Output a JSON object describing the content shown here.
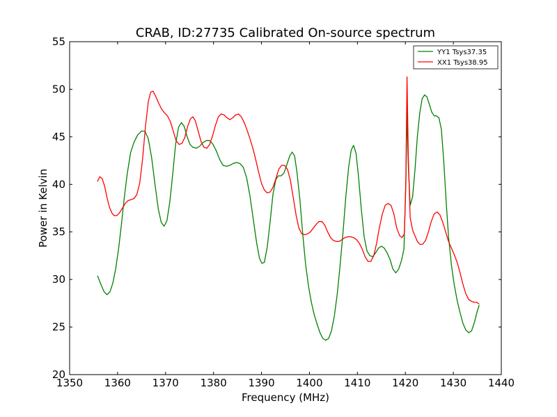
{
  "chart_data": {
    "type": "line",
    "title": "CRAB, ID:27735 Calibrated On-source spectrum",
    "xlabel": "Frequency (MHz)",
    "ylabel": "Power in Kelvin",
    "xlim": [
      1350,
      1440
    ],
    "ylim": [
      20,
      55
    ],
    "xticks": [
      1350,
      1360,
      1370,
      1380,
      1390,
      1400,
      1410,
      1420,
      1430,
      1440
    ],
    "yticks": [
      20,
      25,
      30,
      35,
      40,
      45,
      50,
      55
    ],
    "x_tick_labels": [
      "1350",
      "1360",
      "1370",
      "1380",
      "1390",
      "1400",
      "1410",
      "1420",
      "1430",
      "1440"
    ],
    "y_tick_labels": [
      "20",
      "25",
      "30",
      "35",
      "40",
      "45",
      "50",
      "55"
    ],
    "grid": false,
    "legend_position": "top-right",
    "series": [
      {
        "name": "YY1 Tsys37.35",
        "color": "#008000",
        "points": [
          [
            1355.8,
            30.4
          ],
          [
            1356.5,
            29.5
          ],
          [
            1357.2,
            28.7
          ],
          [
            1357.8,
            28.4
          ],
          [
            1358.4,
            28.7
          ],
          [
            1359.0,
            29.6
          ],
          [
            1359.6,
            31.1
          ],
          [
            1360.2,
            33.2
          ],
          [
            1360.8,
            35.8
          ],
          [
            1361.4,
            38.6
          ],
          [
            1362.0,
            41.1
          ],
          [
            1362.7,
            43.3
          ],
          [
            1363.4,
            44.4
          ],
          [
            1364.2,
            45.2
          ],
          [
            1365.0,
            45.6
          ],
          [
            1365.7,
            45.6
          ],
          [
            1366.4,
            44.8
          ],
          [
            1367.1,
            42.8
          ],
          [
            1367.8,
            40.0
          ],
          [
            1368.5,
            37.4
          ],
          [
            1369.1,
            36.0
          ],
          [
            1369.7,
            35.6
          ],
          [
            1370.3,
            36.2
          ],
          [
            1370.9,
            38.2
          ],
          [
            1371.5,
            41.1
          ],
          [
            1372.1,
            44.2
          ],
          [
            1372.7,
            46.0
          ],
          [
            1373.3,
            46.5
          ],
          [
            1373.9,
            46.1
          ],
          [
            1374.5,
            45.0
          ],
          [
            1375.1,
            44.2
          ],
          [
            1375.7,
            43.9
          ],
          [
            1376.4,
            43.8
          ],
          [
            1377.1,
            44.0
          ],
          [
            1377.8,
            44.4
          ],
          [
            1378.5,
            44.6
          ],
          [
            1379.2,
            44.6
          ],
          [
            1379.9,
            44.2
          ],
          [
            1380.6,
            43.5
          ],
          [
            1381.3,
            42.6
          ],
          [
            1382.0,
            42.0
          ],
          [
            1382.7,
            41.9
          ],
          [
            1383.4,
            42.0
          ],
          [
            1384.1,
            42.2
          ],
          [
            1384.8,
            42.3
          ],
          [
            1385.5,
            42.2
          ],
          [
            1386.2,
            41.8
          ],
          [
            1386.9,
            40.7
          ],
          [
            1387.6,
            38.8
          ],
          [
            1388.3,
            36.3
          ],
          [
            1389.0,
            33.8
          ],
          [
            1389.6,
            32.2
          ],
          [
            1390.1,
            31.7
          ],
          [
            1390.6,
            31.8
          ],
          [
            1391.2,
            33.4
          ],
          [
            1391.8,
            36.1
          ],
          [
            1392.4,
            39.0
          ],
          [
            1393.0,
            40.5
          ],
          [
            1393.5,
            40.9
          ],
          [
            1394.1,
            40.9
          ],
          [
            1394.7,
            41.2
          ],
          [
            1395.3,
            42.1
          ],
          [
            1395.9,
            43.0
          ],
          [
            1396.4,
            43.4
          ],
          [
            1396.9,
            43.0
          ],
          [
            1397.4,
            41.3
          ],
          [
            1398.0,
            38.4
          ],
          [
            1398.6,
            34.8
          ],
          [
            1399.2,
            31.6
          ],
          [
            1399.8,
            29.3
          ],
          [
            1400.4,
            27.6
          ],
          [
            1401.0,
            26.3
          ],
          [
            1401.6,
            25.3
          ],
          [
            1402.2,
            24.4
          ],
          [
            1402.8,
            23.8
          ],
          [
            1403.4,
            23.6
          ],
          [
            1404.0,
            23.8
          ],
          [
            1404.6,
            24.6
          ],
          [
            1405.2,
            26.2
          ],
          [
            1405.8,
            28.5
          ],
          [
            1406.4,
            31.5
          ],
          [
            1407.0,
            35.0
          ],
          [
            1407.6,
            38.8
          ],
          [
            1408.2,
            41.9
          ],
          [
            1408.7,
            43.6
          ],
          [
            1409.2,
            44.1
          ],
          [
            1409.7,
            43.3
          ],
          [
            1410.2,
            41.0
          ],
          [
            1410.8,
            37.5
          ],
          [
            1411.4,
            34.5
          ],
          [
            1412.0,
            33.0
          ],
          [
            1412.6,
            32.5
          ],
          [
            1413.2,
            32.4
          ],
          [
            1413.8,
            32.8
          ],
          [
            1414.4,
            33.3
          ],
          [
            1415.0,
            33.5
          ],
          [
            1415.6,
            33.3
          ],
          [
            1416.2,
            32.8
          ],
          [
            1416.8,
            32.1
          ],
          [
            1417.4,
            31.1
          ],
          [
            1418.0,
            30.7
          ],
          [
            1418.6,
            31.1
          ],
          [
            1419.2,
            32.0
          ],
          [
            1419.7,
            33.2
          ],
          [
            1420.1,
            40.0
          ],
          [
            1420.35,
            47.5
          ],
          [
            1420.6,
            42.0
          ],
          [
            1421.0,
            37.8
          ],
          [
            1421.5,
            38.7
          ],
          [
            1422.0,
            41.5
          ],
          [
            1422.5,
            45.0
          ],
          [
            1423.0,
            47.5
          ],
          [
            1423.5,
            49.0
          ],
          [
            1424.0,
            49.4
          ],
          [
            1424.5,
            49.2
          ],
          [
            1425.0,
            48.4
          ],
          [
            1425.5,
            47.6
          ],
          [
            1426.0,
            47.2
          ],
          [
            1426.5,
            47.2
          ],
          [
            1427.0,
            47.0
          ],
          [
            1427.5,
            45.8
          ],
          [
            1428.0,
            42.5
          ],
          [
            1428.5,
            38.2
          ],
          [
            1429.0,
            34.5
          ],
          [
            1429.6,
            31.5
          ],
          [
            1430.2,
            29.4
          ],
          [
            1430.8,
            27.8
          ],
          [
            1431.4,
            26.5
          ],
          [
            1432.0,
            25.4
          ],
          [
            1432.6,
            24.7
          ],
          [
            1433.2,
            24.4
          ],
          [
            1433.8,
            24.6
          ],
          [
            1434.4,
            25.5
          ],
          [
            1435.0,
            26.7
          ],
          [
            1435.4,
            27.3
          ]
        ]
      },
      {
        "name": "XX1 Tsys38.95",
        "color": "#ff0000",
        "points": [
          [
            1355.8,
            40.3
          ],
          [
            1356.3,
            40.8
          ],
          [
            1356.8,
            40.6
          ],
          [
            1357.3,
            39.8
          ],
          [
            1357.8,
            38.6
          ],
          [
            1358.3,
            37.6
          ],
          [
            1358.8,
            37.0
          ],
          [
            1359.3,
            36.7
          ],
          [
            1359.8,
            36.7
          ],
          [
            1360.4,
            37.0
          ],
          [
            1361.0,
            37.5
          ],
          [
            1361.6,
            38.0
          ],
          [
            1362.2,
            38.3
          ],
          [
            1362.8,
            38.4
          ],
          [
            1363.4,
            38.5
          ],
          [
            1364.0,
            38.9
          ],
          [
            1364.6,
            40.1
          ],
          [
            1365.2,
            42.6
          ],
          [
            1365.8,
            46.0
          ],
          [
            1366.4,
            48.7
          ],
          [
            1366.9,
            49.7
          ],
          [
            1367.4,
            49.8
          ],
          [
            1368.0,
            49.2
          ],
          [
            1368.6,
            48.5
          ],
          [
            1369.2,
            47.9
          ],
          [
            1369.8,
            47.5
          ],
          [
            1370.4,
            47.2
          ],
          [
            1371.0,
            46.6
          ],
          [
            1371.6,
            45.6
          ],
          [
            1372.2,
            44.6
          ],
          [
            1372.8,
            44.2
          ],
          [
            1373.4,
            44.3
          ],
          [
            1374.0,
            44.9
          ],
          [
            1374.6,
            46.1
          ],
          [
            1375.2,
            46.9
          ],
          [
            1375.7,
            47.1
          ],
          [
            1376.2,
            46.7
          ],
          [
            1376.8,
            45.6
          ],
          [
            1377.4,
            44.5
          ],
          [
            1378.0,
            43.9
          ],
          [
            1378.6,
            43.8
          ],
          [
            1379.2,
            44.2
          ],
          [
            1379.8,
            45.1
          ],
          [
            1380.4,
            46.2
          ],
          [
            1381.0,
            47.1
          ],
          [
            1381.6,
            47.4
          ],
          [
            1382.2,
            47.3
          ],
          [
            1382.8,
            47.0
          ],
          [
            1383.4,
            46.8
          ],
          [
            1384.0,
            47.0
          ],
          [
            1384.6,
            47.3
          ],
          [
            1385.2,
            47.4
          ],
          [
            1385.8,
            47.1
          ],
          [
            1386.4,
            46.5
          ],
          [
            1387.0,
            45.7
          ],
          [
            1387.6,
            44.8
          ],
          [
            1388.2,
            43.8
          ],
          [
            1388.8,
            42.6
          ],
          [
            1389.4,
            41.3
          ],
          [
            1390.0,
            40.1
          ],
          [
            1390.6,
            39.4
          ],
          [
            1391.2,
            39.1
          ],
          [
            1391.8,
            39.2
          ],
          [
            1392.4,
            39.7
          ],
          [
            1393.0,
            40.6
          ],
          [
            1393.6,
            41.6
          ],
          [
            1394.2,
            42.0
          ],
          [
            1394.8,
            42.0
          ],
          [
            1395.4,
            41.6
          ],
          [
            1396.0,
            40.5
          ],
          [
            1396.6,
            38.7
          ],
          [
            1397.2,
            36.8
          ],
          [
            1397.8,
            35.4
          ],
          [
            1398.4,
            34.8
          ],
          [
            1399.0,
            34.7
          ],
          [
            1399.6,
            34.8
          ],
          [
            1400.2,
            35.0
          ],
          [
            1400.8,
            35.4
          ],
          [
            1401.4,
            35.8
          ],
          [
            1402.0,
            36.1
          ],
          [
            1402.6,
            36.1
          ],
          [
            1403.2,
            35.7
          ],
          [
            1403.8,
            35.0
          ],
          [
            1404.4,
            34.4
          ],
          [
            1405.0,
            34.1
          ],
          [
            1405.6,
            34.0
          ],
          [
            1406.2,
            34.0
          ],
          [
            1406.8,
            34.2
          ],
          [
            1407.4,
            34.4
          ],
          [
            1408.0,
            34.5
          ],
          [
            1408.6,
            34.5
          ],
          [
            1409.2,
            34.4
          ],
          [
            1409.8,
            34.2
          ],
          [
            1410.4,
            33.8
          ],
          [
            1411.0,
            33.2
          ],
          [
            1411.6,
            32.4
          ],
          [
            1412.2,
            31.9
          ],
          [
            1412.8,
            31.9
          ],
          [
            1413.4,
            32.5
          ],
          [
            1414.0,
            33.8
          ],
          [
            1414.6,
            35.5
          ],
          [
            1415.2,
            36.9
          ],
          [
            1415.8,
            37.8
          ],
          [
            1416.4,
            38.0
          ],
          [
            1417.0,
            37.8
          ],
          [
            1417.6,
            36.9
          ],
          [
            1418.2,
            35.4
          ],
          [
            1418.8,
            34.6
          ],
          [
            1419.3,
            34.4
          ],
          [
            1419.8,
            34.8
          ],
          [
            1420.1,
            40.5
          ],
          [
            1420.35,
            51.3
          ],
          [
            1420.6,
            43.0
          ],
          [
            1421.0,
            36.5
          ],
          [
            1421.5,
            35.2
          ],
          [
            1422.0,
            34.6
          ],
          [
            1422.5,
            34.0
          ],
          [
            1423.0,
            33.7
          ],
          [
            1423.6,
            33.7
          ],
          [
            1424.2,
            34.1
          ],
          [
            1424.8,
            35.0
          ],
          [
            1425.4,
            36.1
          ],
          [
            1426.0,
            36.9
          ],
          [
            1426.6,
            37.1
          ],
          [
            1427.2,
            36.8
          ],
          [
            1427.8,
            36.0
          ],
          [
            1428.4,
            35.0
          ],
          [
            1429.0,
            34.0
          ],
          [
            1429.6,
            33.3
          ],
          [
            1430.2,
            32.6
          ],
          [
            1430.8,
            31.8
          ],
          [
            1431.4,
            30.7
          ],
          [
            1432.0,
            29.5
          ],
          [
            1432.6,
            28.5
          ],
          [
            1433.2,
            27.9
          ],
          [
            1433.8,
            27.7
          ],
          [
            1434.4,
            27.6
          ],
          [
            1434.9,
            27.6
          ],
          [
            1435.4,
            27.4
          ]
        ]
      }
    ]
  }
}
